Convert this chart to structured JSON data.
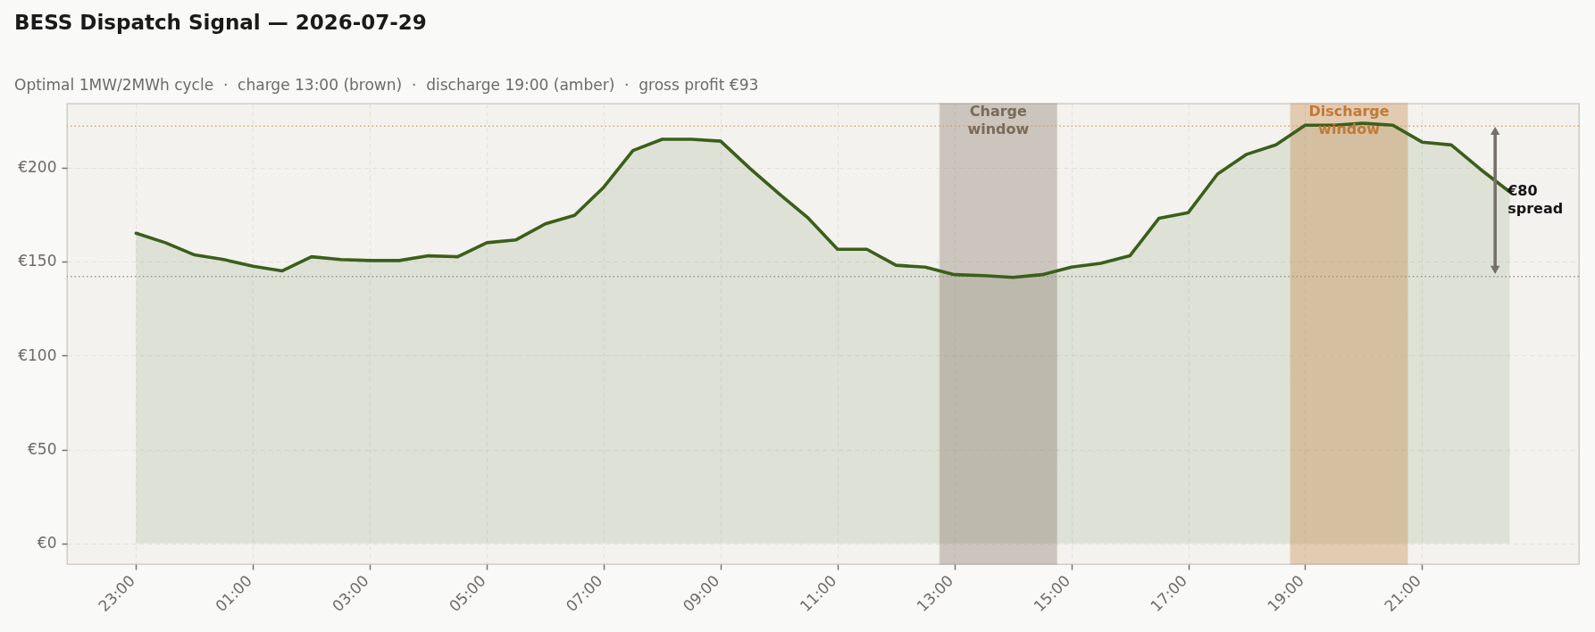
{
  "chart_data": {
    "type": "area",
    "title": "BESS Dispatch Signal — 2026-07-29",
    "subtitle": "Optimal 1MW/2MWh cycle  ·  charge 13:00 (brown)  ·  discharge 19:00 (amber)  ·  gross profit €93",
    "x": [
      "2026-07-28T23:00",
      "2026-07-28T23:30",
      "2026-07-29T00:00",
      "2026-07-29T00:30",
      "2026-07-29T01:00",
      "2026-07-29T01:30",
      "2026-07-29T02:00",
      "2026-07-29T02:30",
      "2026-07-29T03:00",
      "2026-07-29T03:30",
      "2026-07-29T04:00",
      "2026-07-29T04:30",
      "2026-07-29T05:00",
      "2026-07-29T05:30",
      "2026-07-29T06:00",
      "2026-07-29T06:30",
      "2026-07-29T07:00",
      "2026-07-29T07:30",
      "2026-07-29T08:00",
      "2026-07-29T08:30",
      "2026-07-29T09:00",
      "2026-07-29T09:30",
      "2026-07-29T10:00",
      "2026-07-29T10:30",
      "2026-07-29T11:00",
      "2026-07-29T11:30",
      "2026-07-29T12:00",
      "2026-07-29T12:30",
      "2026-07-29T13:00",
      "2026-07-29T13:30",
      "2026-07-29T14:00",
      "2026-07-29T14:30",
      "2026-07-29T15:00",
      "2026-07-29T15:30",
      "2026-07-29T16:00",
      "2026-07-29T16:30",
      "2026-07-29T17:00",
      "2026-07-29T17:30",
      "2026-07-29T18:00",
      "2026-07-29T18:30",
      "2026-07-29T19:00",
      "2026-07-29T19:30",
      "2026-07-29T20:00",
      "2026-07-29T20:30",
      "2026-07-29T21:00",
      "2026-07-29T21:30",
      "2026-07-29T22:00",
      "2026-07-29T22:30"
    ],
    "series": [
      {
        "color": "#3a5f1a",
        "values": [
          165,
          160,
          153.5,
          151,
          147.5,
          145,
          152.5,
          151,
          150.5,
          150.5,
          153,
          152.5,
          160,
          161.5,
          170,
          174.5,
          189.5,
          209,
          215,
          215,
          214,
          199.5,
          186,
          173,
          156.5,
          156.5,
          148,
          147,
          143,
          142.5,
          141.5,
          143,
          147,
          149,
          153,
          173,
          176,
          196.5,
          207,
          212,
          222.5,
          222.5,
          223.5,
          222.5,
          213.5,
          212,
          199,
          187
        ]
      },
      {
        "type": "line",
        "color": "#777069",
        "marker": "triangle",
        "x": [
          "2026-07-29T22:15",
          "2026-07-29T22:15"
        ],
        "values": [
          219.5,
          145.5
        ]
      }
    ],
    "xlim": [
      "2026-07-28T21:49",
      "2026-07-29T23:41"
    ],
    "xticks": [
      {
        "value": "2026-07-28T23:00",
        "label": "23:00"
      },
      {
        "value": "2026-07-29T01:00",
        "label": "01:00"
      },
      {
        "value": "2026-07-29T03:00",
        "label": "03:00"
      },
      {
        "value": "2026-07-29T05:00",
        "label": "05:00"
      },
      {
        "value": "2026-07-29T07:00",
        "label": "07:00"
      },
      {
        "value": "2026-07-29T09:00",
        "label": "09:00"
      },
      {
        "value": "2026-07-29T11:00",
        "label": "11:00"
      },
      {
        "value": "2026-07-29T13:00",
        "label": "13:00"
      },
      {
        "value": "2026-07-29T15:00",
        "label": "15:00"
      },
      {
        "value": "2026-07-29T17:00",
        "label": "17:00"
      },
      {
        "value": "2026-07-29T19:00",
        "label": "19:00"
      },
      {
        "value": "2026-07-29T21:00",
        "label": "21:00"
      }
    ],
    "ylim": [
      -11,
      234
    ],
    "yticks": [
      {
        "value": 0,
        "label": "€0"
      },
      {
        "value": 50,
        "label": "€50"
      },
      {
        "value": 100,
        "label": "€100"
      },
      {
        "value": 150,
        "label": "€150"
      },
      {
        "value": 200,
        "label": "€200"
      }
    ],
    "grid": true,
    "bands": [
      {
        "axis": "x",
        "from": "2026-07-29T12:45",
        "to": "2026-07-29T14:45",
        "label": "Charge window",
        "color": "#7a6a58"
      },
      {
        "axis": "x",
        "from": "2026-07-29T18:45",
        "to": "2026-07-29T20:45",
        "label": "Discharge window",
        "color": "#c07a34"
      }
    ],
    "ref_lines": [
      {
        "axis": "y",
        "value": 222,
        "color": "#d4a373",
        "line_style": "dotted"
      },
      {
        "axis": "y",
        "value": 142,
        "color": "#9c958a",
        "line_style": "dotted"
      }
    ],
    "annotations": [
      "€80 spread"
    ]
  }
}
